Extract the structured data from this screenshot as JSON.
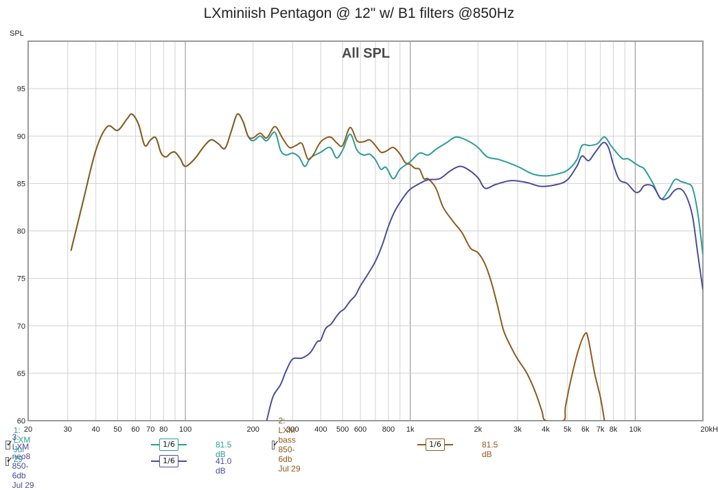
{
  "chart_data": {
    "type": "line",
    "title": "LXminiish Pentagon @ 12\" w/ B1 filters @850Hz",
    "plot_label": "All SPL",
    "ylabel": "SPL",
    "x_scale": "log",
    "xlim": [
      20,
      20000
    ],
    "ylim": [
      60,
      100
    ],
    "y_ticks": [
      60,
      65,
      70,
      75,
      80,
      85,
      90,
      95
    ],
    "x_ticks": [
      {
        "v": 20,
        "label": "20"
      },
      {
        "v": 30,
        "label": "30"
      },
      {
        "v": 40,
        "label": "40"
      },
      {
        "v": 50,
        "label": "50"
      },
      {
        "v": 60,
        "label": "60"
      },
      {
        "v": 70,
        "label": "70"
      },
      {
        "v": 80,
        "label": "80"
      },
      {
        "v": 100,
        "label": "100"
      },
      {
        "v": 200,
        "label": "200"
      },
      {
        "v": 300,
        "label": "300"
      },
      {
        "v": 400,
        "label": "400"
      },
      {
        "v": 500,
        "label": "500"
      },
      {
        "v": 600,
        "label": "600"
      },
      {
        "v": 800,
        "label": "800"
      },
      {
        "v": 1000,
        "label": "1k"
      },
      {
        "v": 2000,
        "label": "2k"
      },
      {
        "v": 3000,
        "label": "3k"
      },
      {
        "v": 4000,
        "label": "4k"
      },
      {
        "v": 5000,
        "label": "5k"
      },
      {
        "v": 6000,
        "label": "6k"
      },
      {
        "v": 7000,
        "label": "7k"
      },
      {
        "v": 8000,
        "label": "8k"
      },
      {
        "v": 10000,
        "label": "10k"
      },
      {
        "v": 20000,
        "label": "20kHz"
      }
    ],
    "grid": true,
    "series": [
      {
        "name": "1: LXM Jul 29",
        "color": "#2a9d96",
        "smoothing": "1/6",
        "ref": "81.5 dB",
        "points": [
          [
            31,
            77.9
          ],
          [
            35,
            83
          ],
          [
            40,
            88.5
          ],
          [
            45,
            91
          ],
          [
            50,
            90.6
          ],
          [
            55,
            91.8
          ],
          [
            58,
            92.3
          ],
          [
            62,
            91.2
          ],
          [
            66,
            89
          ],
          [
            70,
            89.6
          ],
          [
            74,
            89.8
          ],
          [
            78,
            88.2
          ],
          [
            82,
            87.8
          ],
          [
            86,
            88.2
          ],
          [
            90,
            88.3
          ],
          [
            95,
            87.6
          ],
          [
            100,
            86.8
          ],
          [
            110,
            87.6
          ],
          [
            120,
            88.8
          ],
          [
            130,
            89.6
          ],
          [
            140,
            89.2
          ],
          [
            150,
            88.7
          ],
          [
            160,
            90.5
          ],
          [
            170,
            92.3
          ],
          [
            180,
            91.6
          ],
          [
            190,
            90
          ],
          [
            200,
            89.5
          ],
          [
            215,
            90
          ],
          [
            230,
            89.5
          ],
          [
            250,
            90.4
          ],
          [
            265,
            88.5
          ],
          [
            280,
            88
          ],
          [
            300,
            88.2
          ],
          [
            320,
            87.8
          ],
          [
            340,
            86.8
          ],
          [
            360,
            87.7
          ],
          [
            400,
            88.3
          ],
          [
            440,
            88.8
          ],
          [
            470,
            87.7
          ],
          [
            500,
            88.5
          ],
          [
            540,
            90.2
          ],
          [
            580,
            88.5
          ],
          [
            620,
            88
          ],
          [
            660,
            88.1
          ],
          [
            700,
            87.5
          ],
          [
            740,
            86.5
          ],
          [
            780,
            86.7
          ],
          [
            840,
            85.5
          ],
          [
            900,
            86.5
          ],
          [
            1000,
            87.3
          ],
          [
            1100,
            88.2
          ],
          [
            1200,
            88
          ],
          [
            1300,
            88.6
          ],
          [
            1450,
            89.3
          ],
          [
            1600,
            89.9
          ],
          [
            1800,
            89.5
          ],
          [
            2000,
            88.8
          ],
          [
            2200,
            87.8
          ],
          [
            2500,
            87.5
          ],
          [
            3000,
            86.8
          ],
          [
            3500,
            86
          ],
          [
            4000,
            85.8
          ],
          [
            4500,
            86
          ],
          [
            5000,
            86.4
          ],
          [
            5500,
            87.5
          ],
          [
            5800,
            89
          ],
          [
            6300,
            89
          ],
          [
            6800,
            89.2
          ],
          [
            7300,
            89.9
          ],
          [
            7800,
            89
          ],
          [
            8300,
            88.2
          ],
          [
            8800,
            87.6
          ],
          [
            9300,
            87.6
          ],
          [
            10000,
            87.1
          ],
          [
            10500,
            86.8
          ],
          [
            11000,
            86.5
          ],
          [
            12000,
            85
          ],
          [
            13000,
            83.4
          ],
          [
            14000,
            84.2
          ],
          [
            15000,
            85.4
          ],
          [
            16000,
            85.2
          ],
          [
            17000,
            85
          ],
          [
            18000,
            84.5
          ],
          [
            19000,
            81.8
          ],
          [
            20000,
            77.5
          ]
        ]
      },
      {
        "name": "2: LXM bass 850-6db Jul 29",
        "color": "#8b5a1a",
        "smoothing": "1/6",
        "ref": "81.5 dB",
        "points": [
          [
            31,
            77.9
          ],
          [
            35,
            83
          ],
          [
            40,
            88.5
          ],
          [
            45,
            91
          ],
          [
            50,
            90.6
          ],
          [
            55,
            91.8
          ],
          [
            58,
            92.3
          ],
          [
            62,
            91.2
          ],
          [
            66,
            89
          ],
          [
            70,
            89.6
          ],
          [
            74,
            89.8
          ],
          [
            78,
            88.2
          ],
          [
            82,
            87.8
          ],
          [
            86,
            88.2
          ],
          [
            90,
            88.3
          ],
          [
            95,
            87.6
          ],
          [
            100,
            86.8
          ],
          [
            110,
            87.6
          ],
          [
            120,
            88.8
          ],
          [
            130,
            89.6
          ],
          [
            140,
            89.2
          ],
          [
            150,
            88.7
          ],
          [
            160,
            90.5
          ],
          [
            170,
            92.3
          ],
          [
            180,
            91.6
          ],
          [
            190,
            90
          ],
          [
            200,
            89.8
          ],
          [
            215,
            90.3
          ],
          [
            230,
            89.8
          ],
          [
            250,
            91
          ],
          [
            270,
            89.8
          ],
          [
            290,
            88.8
          ],
          [
            310,
            89
          ],
          [
            330,
            89.2
          ],
          [
            350,
            87.6
          ],
          [
            370,
            88
          ],
          [
            400,
            89.4
          ],
          [
            440,
            89.9
          ],
          [
            470,
            89.3
          ],
          [
            500,
            89
          ],
          [
            540,
            90.9
          ],
          [
            580,
            89.5
          ],
          [
            620,
            89.4
          ],
          [
            660,
            89.6
          ],
          [
            700,
            89
          ],
          [
            740,
            88.3
          ],
          [
            780,
            88.4
          ],
          [
            840,
            88.8
          ],
          [
            900,
            88.1
          ],
          [
            950,
            87.2
          ],
          [
            1000,
            87
          ],
          [
            1050,
            86.6
          ],
          [
            1100,
            86.5
          ],
          [
            1150,
            85.5
          ],
          [
            1200,
            85.5
          ],
          [
            1300,
            84.5
          ],
          [
            1400,
            82.5
          ],
          [
            1550,
            81
          ],
          [
            1700,
            79.8
          ],
          [
            1850,
            78.2
          ],
          [
            2000,
            77.7
          ],
          [
            2150,
            76.5
          ],
          [
            2300,
            74.5
          ],
          [
            2450,
            72
          ],
          [
            2600,
            69.5
          ],
          [
            2800,
            67.8
          ],
          [
            3000,
            66.5
          ],
          [
            3300,
            65
          ],
          [
            3600,
            63
          ],
          [
            3850,
            61
          ],
          [
            4000,
            60
          ],
          [
            4800,
            60
          ],
          [
            4900,
            61.5
          ],
          [
            5200,
            64.5
          ],
          [
            5600,
            67.5
          ],
          [
            6000,
            69.2
          ],
          [
            6200,
            68.5
          ],
          [
            6600,
            65
          ],
          [
            7000,
            62.5
          ],
          [
            7300,
            60
          ]
        ]
      },
      {
        "name": "3: LXM neo8 850-6db Jul 29",
        "color": "#4b4a9b",
        "smoothing": "1/6",
        "ref": "41.0 dB",
        "points": [
          [
            230,
            60
          ],
          [
            245,
            62.5
          ],
          [
            265,
            63.8
          ],
          [
            280,
            65.2
          ],
          [
            300,
            66.5
          ],
          [
            330,
            66.6
          ],
          [
            360,
            67.2
          ],
          [
            385,
            68.3
          ],
          [
            400,
            68.5
          ],
          [
            420,
            69.7
          ],
          [
            445,
            70.2
          ],
          [
            470,
            71
          ],
          [
            490,
            71.5
          ],
          [
            510,
            71.8
          ],
          [
            540,
            72.6
          ],
          [
            570,
            73.2
          ],
          [
            600,
            74.2
          ],
          [
            650,
            75.5
          ],
          [
            700,
            76.8
          ],
          [
            750,
            78.5
          ],
          [
            800,
            80.5
          ],
          [
            850,
            82
          ],
          [
            900,
            83
          ],
          [
            950,
            83.8
          ],
          [
            1000,
            84.4
          ],
          [
            1100,
            85
          ],
          [
            1200,
            85.4
          ],
          [
            1350,
            85.5
          ],
          [
            1500,
            86.3
          ],
          [
            1650,
            86.8
          ],
          [
            1800,
            86.5
          ],
          [
            2000,
            85.6
          ],
          [
            2150,
            84.5
          ],
          [
            2400,
            84.9
          ],
          [
            2800,
            85.3
          ],
          [
            3300,
            85.1
          ],
          [
            3800,
            84.7
          ],
          [
            4500,
            84.9
          ],
          [
            5000,
            85.4
          ],
          [
            5500,
            86.8
          ],
          [
            5800,
            87.9
          ],
          [
            6200,
            87.4
          ],
          [
            6600,
            88.2
          ],
          [
            7200,
            89.3
          ],
          [
            7600,
            88.8
          ],
          [
            8000,
            87
          ],
          [
            8500,
            85.4
          ],
          [
            9200,
            85
          ],
          [
            10000,
            84.1
          ],
          [
            10500,
            84.2
          ],
          [
            11000,
            84.8
          ],
          [
            12000,
            84.7
          ],
          [
            13000,
            83.4
          ],
          [
            14000,
            83.5
          ],
          [
            15000,
            84.3
          ],
          [
            16000,
            84.4
          ],
          [
            17000,
            83.5
          ],
          [
            18000,
            81.5
          ],
          [
            19000,
            77.5
          ],
          [
            20000,
            73.8
          ]
        ]
      }
    ]
  }
}
